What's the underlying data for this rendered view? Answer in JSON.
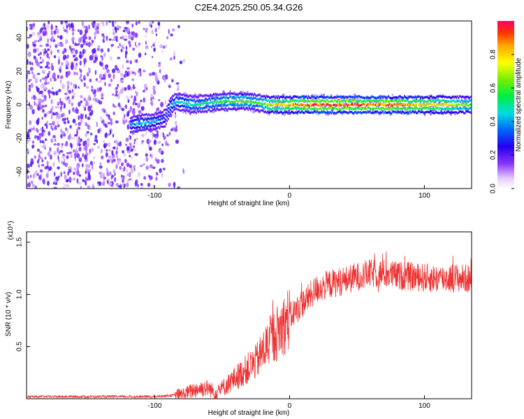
{
  "title": "C2E4.2025.250.05.34.G26",
  "chart_data": [
    {
      "type": "heatmap",
      "xlabel": "Height of straight line (km)",
      "ylabel": "Frequency (Hz)",
      "xlim": [
        -195,
        135
      ],
      "ylim": [
        -50,
        50
      ],
      "xticks": [
        -100,
        0,
        100
      ],
      "xtick_labels": [
        "-100",
        "0",
        "100"
      ],
      "yticks": [
        -40,
        -20,
        0,
        20,
        40
      ],
      "ytick_labels": [
        "-40",
        "-20",
        "0",
        "20",
        "40"
      ],
      "colorbar": {
        "label": "Normalized spectral amplitude",
        "range": [
          0.0,
          1.0
        ],
        "ticks": [
          0.0,
          0.2,
          0.4,
          0.6,
          0.8
        ],
        "tick_labels": [
          "0.0",
          "0.2",
          "0.4",
          "0.6",
          "0.8"
        ]
      },
      "ridge": {
        "x": [
          -118,
          -110,
          -100,
          -92,
          -88,
          -84,
          -78,
          -70,
          -60,
          -50,
          -40,
          -30,
          -22,
          -15,
          0,
          20,
          50,
          80,
          110,
          135
        ],
        "y": [
          -12,
          -11,
          -10,
          -8,
          0,
          2,
          1,
          0,
          1,
          2,
          2,
          2,
          1,
          0,
          0,
          0,
          0,
          0,
          0,
          0
        ],
        "amplitude": [
          0.35,
          0.45,
          0.4,
          0.3,
          0.4,
          0.45,
          0.45,
          0.5,
          0.5,
          0.55,
          0.6,
          0.6,
          0.55,
          0.7,
          0.8,
          0.9,
          0.9,
          0.85,
          0.75,
          0.6
        ]
      }
    },
    {
      "type": "line",
      "xlabel": "Height of straight line (km)",
      "ylabel": "SNR (10 * v/v)",
      "y_multiplier": "(x10⁴)",
      "xlim": [
        -195,
        135
      ],
      "ylim": [
        0,
        1.6
      ],
      "xticks": [
        -100,
        0,
        100
      ],
      "xtick_labels": [
        "-100",
        "0",
        "100"
      ],
      "yticks": [
        0.5,
        1.0,
        1.5
      ],
      "ytick_labels": [
        "0.5",
        "1.0",
        "1.5"
      ],
      "color": "#ee3333",
      "series": [
        {
          "name": "SNR",
          "x": [
            -195,
            -150,
            -100,
            -90,
            -80,
            -75,
            -70,
            -65,
            -60,
            -55,
            -50,
            -45,
            -40,
            -35,
            -30,
            -25,
            -20,
            -15,
            -10,
            -5,
            0,
            5,
            10,
            15,
            20,
            30,
            40,
            50,
            60,
            70,
            80,
            90,
            100,
            110,
            120,
            135
          ],
          "y": [
            0.02,
            0.02,
            0.02,
            0.03,
            0.04,
            0.06,
            0.09,
            0.1,
            0.1,
            0.06,
            0.1,
            0.15,
            0.2,
            0.25,
            0.3,
            0.35,
            0.45,
            0.55,
            0.62,
            0.7,
            0.78,
            0.85,
            0.92,
            0.98,
            1.05,
            1.1,
            1.13,
            1.17,
            1.2,
            1.2,
            1.18,
            1.17,
            1.16,
            1.15,
            1.16,
            1.15
          ]
        }
      ]
    }
  ]
}
